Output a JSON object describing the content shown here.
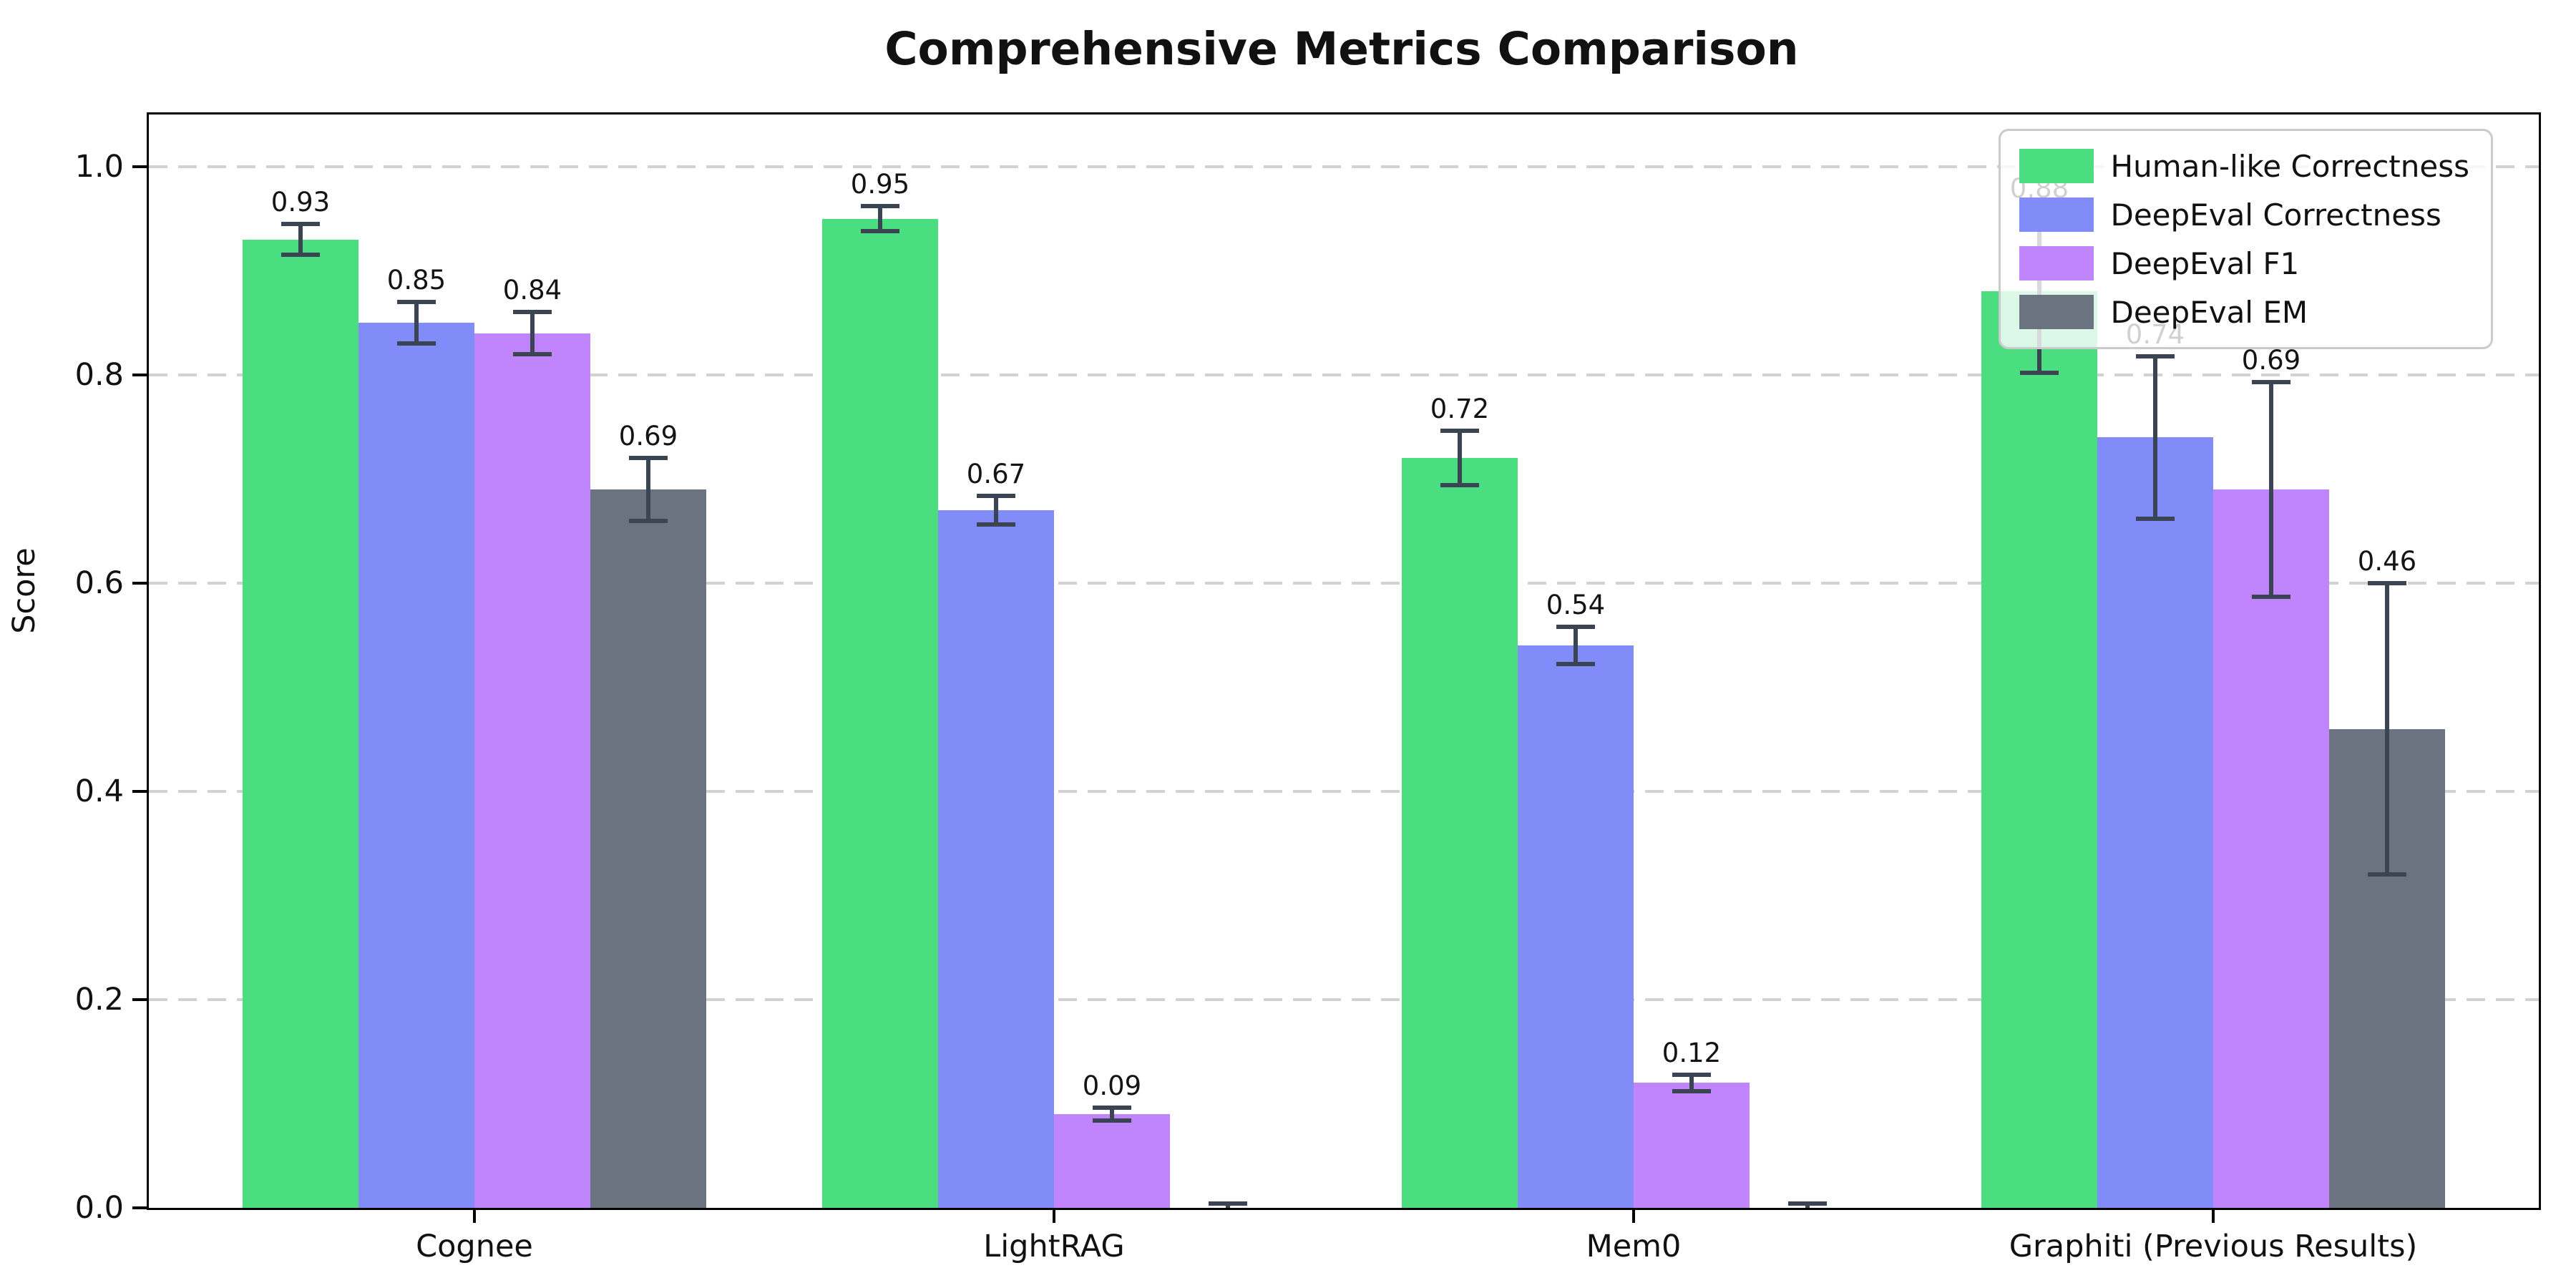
{
  "chart_data": {
    "type": "bar",
    "title": "Comprehensive Metrics Comparison",
    "xlabel": "",
    "ylabel": "Score",
    "categories": [
      "Cognee",
      "LightRAG",
      "Mem0",
      "Graphiti (Previous Results)"
    ],
    "series": [
      {
        "name": "Human-like Correctness",
        "color": "#4ade80",
        "values": [
          0.93,
          0.95,
          0.72,
          0.88
        ],
        "errors": [
          0.015,
          0.012,
          0.026,
          0.078
        ],
        "labels": [
          "0.93",
          "0.95",
          "0.72",
          "0.88"
        ]
      },
      {
        "name": "DeepEval Correctness",
        "color": "#818cf8",
        "values": [
          0.85,
          0.67,
          0.54,
          0.74
        ],
        "errors": [
          0.02,
          0.014,
          0.018,
          0.078
        ],
        "labels": [
          "0.85",
          "0.67",
          "0.54",
          "0.74"
        ]
      },
      {
        "name": "DeepEval F1",
        "color": "#c084fc",
        "values": [
          0.84,
          0.09,
          0.12,
          0.69
        ],
        "errors": [
          0.02,
          0.006,
          0.008,
          0.103
        ],
        "labels": [
          "0.84",
          "0.09",
          "0.12",
          "0.69"
        ]
      },
      {
        "name": "DeepEval EM",
        "color": "#6b7280",
        "values": [
          0.69,
          0.0,
          0.0,
          0.46
        ],
        "errors": [
          0.03,
          0.004,
          0.004,
          0.14
        ],
        "labels": [
          "0.69",
          "",
          "",
          "0.46"
        ]
      }
    ],
    "yticks": [
      "0.0",
      "0.2",
      "0.4",
      "0.6",
      "0.8",
      "1.0"
    ],
    "ylim": [
      0,
      1.05
    ],
    "grid": "horizontal-dashed",
    "legend_position": "upper-right",
    "error_bar_color": "#3b4453"
  }
}
